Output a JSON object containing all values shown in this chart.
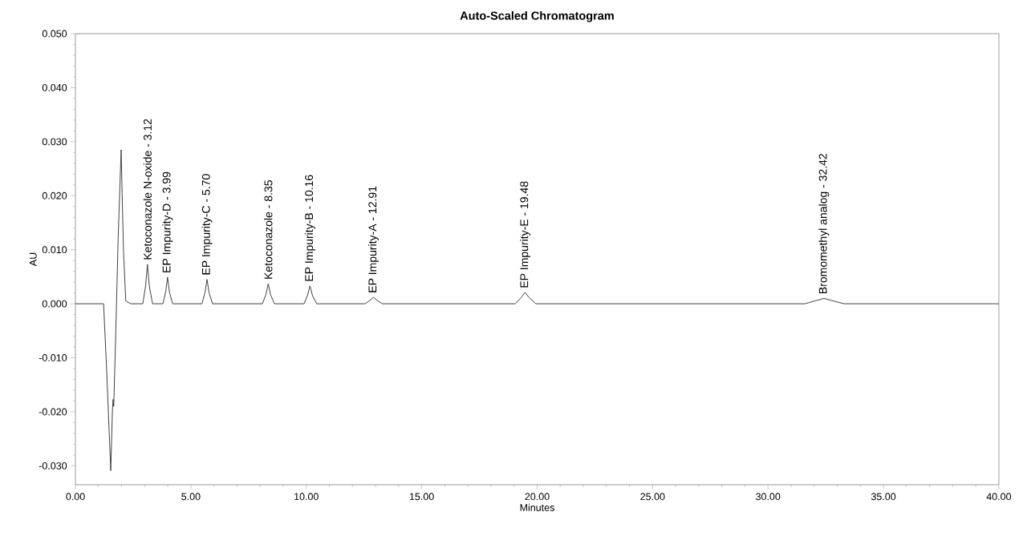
{
  "chart_data": {
    "type": "line",
    "title": "Auto-Scaled Chromatogram",
    "xlabel": "Minutes",
    "ylabel": "AU",
    "series": [
      {
        "color": "#404040",
        "x": [
          0,
          1.22,
          1.35,
          1.53,
          1.6,
          1.63,
          1.66,
          1.75,
          1.85,
          1.98,
          2.08,
          2.18,
          2.4,
          2.92,
          3.04,
          3.12,
          3.2,
          3.34,
          3.79,
          3.91,
          3.99,
          4.07,
          4.21,
          5.48,
          5.61,
          5.7,
          5.79,
          5.94,
          8.1,
          8.25,
          8.35,
          8.45,
          8.62,
          9.9,
          10.05,
          10.16,
          10.27,
          10.45,
          12.55,
          12.75,
          12.91,
          13.07,
          13.3,
          19.05,
          19.3,
          19.48,
          19.66,
          19.95,
          31.6,
          32.1,
          32.42,
          32.75,
          33.3,
          40
        ],
        "values": [
          0,
          0,
          -0.012,
          -0.0309,
          -0.02,
          -0.0177,
          -0.019,
          -0.005,
          0.012,
          0.0285,
          0.01,
          0.0005,
          0,
          0,
          0.0033,
          0.0073,
          0.0033,
          0,
          0,
          0.0022,
          0.0049,
          0.0022,
          0,
          0,
          0.002,
          0.0045,
          0.002,
          0,
          0,
          0.0017,
          0.0037,
          0.0017,
          0,
          0,
          0.0015,
          0.0033,
          0.0015,
          0,
          0,
          0.0006,
          0.0012,
          0.0006,
          0,
          0,
          0.0011,
          0.0021,
          0.0011,
          0,
          0,
          0.0006,
          0.001,
          0.0006,
          0,
          0
        ]
      }
    ],
    "xlim": [
      0,
      40
    ],
    "ylim": [
      -0.0335,
      0.05
    ],
    "xticks": [
      {
        "value": 0,
        "label": "0.00"
      },
      {
        "value": 5,
        "label": "5.00"
      },
      {
        "value": 10,
        "label": "10.00"
      },
      {
        "value": 15,
        "label": "15.00"
      },
      {
        "value": 20,
        "label": "20.00"
      },
      {
        "value": 25,
        "label": "25.00"
      },
      {
        "value": 30,
        "label": "30.00"
      },
      {
        "value": 35,
        "label": "35.00"
      },
      {
        "value": 40,
        "label": "40.00"
      }
    ],
    "yticks": [
      {
        "value": -0.03,
        "label": "-0.030"
      },
      {
        "value": -0.02,
        "label": "-0.020"
      },
      {
        "value": -0.01,
        "label": "-0.010"
      },
      {
        "value": 0,
        "label": "0.000"
      },
      {
        "value": 0.01,
        "label": "0.010"
      },
      {
        "value": 0.02,
        "label": "0.020"
      },
      {
        "value": 0.03,
        "label": "0.030"
      },
      {
        "value": 0.04,
        "label": "0.040"
      },
      {
        "value": 0.05,
        "label": "0.050"
      }
    ],
    "annotations": [
      {
        "text": "Ketoconazole N-oxide - 3.12",
        "x": 3.12,
        "y": 0.0073
      },
      {
        "text": "EP Impurity-D - 3.99",
        "x": 3.99,
        "y": 0.0049
      },
      {
        "text": "EP Impurity-C - 5.70",
        "x": 5.7,
        "y": 0.0045
      },
      {
        "text": "Ketoconazole - 8.35",
        "x": 8.35,
        "y": 0.0037
      },
      {
        "text": "EP Impurity-B - 10.16",
        "x": 10.16,
        "y": 0.0033
      },
      {
        "text": "EP Impurity-A - 12.91",
        "x": 12.91,
        "y": 0.0012
      },
      {
        "text": "EP Impurity-E - 19.48",
        "x": 19.48,
        "y": 0.0021
      },
      {
        "text": "Bromomethyl analog - 32.42",
        "x": 32.42,
        "y": 0.001
      }
    ],
    "grid": false,
    "marker": "none",
    "line_style": "solid"
  }
}
